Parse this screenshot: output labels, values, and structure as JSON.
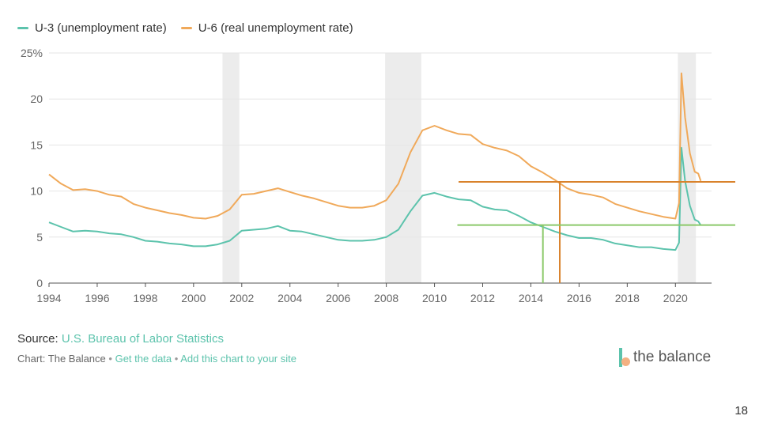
{
  "legend": [
    {
      "label": "U-3 (unemployment rate)",
      "color": "#5cc3ac"
    },
    {
      "label": "U-6 (real unemployment rate)",
      "color": "#f0a95a"
    }
  ],
  "chart_data": {
    "type": "line",
    "x_axis": {
      "min": 1994,
      "max": 2021.5,
      "ticks": [
        "1994",
        "1996",
        "1998",
        "2000",
        "2002",
        "2004",
        "2006",
        "2008",
        "2010",
        "2012",
        "2014",
        "2016",
        "2018",
        "2020"
      ]
    },
    "y_axis": {
      "min": 0,
      "max": 25,
      "ticks": [
        "0",
        "5",
        "10",
        "15",
        "20",
        "25%"
      ]
    },
    "grid": true,
    "legend_position": "top-left",
    "recession_shading": [
      [
        2001.2,
        2001.9
      ],
      [
        2007.95,
        2009.45
      ],
      [
        2020.1,
        2020.85
      ]
    ],
    "series": [
      {
        "name": "U-3 (unemployment rate)",
        "color": "#5cc3ac",
        "points": [
          [
            1994.0,
            6.6
          ],
          [
            1994.5,
            6.1
          ],
          [
            1995.0,
            5.6
          ],
          [
            1995.5,
            5.7
          ],
          [
            1996.0,
            5.6
          ],
          [
            1996.5,
            5.4
          ],
          [
            1997.0,
            5.3
          ],
          [
            1997.5,
            5.0
          ],
          [
            1998.0,
            4.6
          ],
          [
            1998.5,
            4.5
          ],
          [
            1999.0,
            4.3
          ],
          [
            1999.5,
            4.2
          ],
          [
            2000.0,
            4.0
          ],
          [
            2000.5,
            4.0
          ],
          [
            2001.0,
            4.2
          ],
          [
            2001.5,
            4.6
          ],
          [
            2002.0,
            5.7
          ],
          [
            2002.5,
            5.8
          ],
          [
            2003.0,
            5.9
          ],
          [
            2003.5,
            6.2
          ],
          [
            2004.0,
            5.7
          ],
          [
            2004.5,
            5.6
          ],
          [
            2005.0,
            5.3
          ],
          [
            2005.5,
            5.0
          ],
          [
            2006.0,
            4.7
          ],
          [
            2006.5,
            4.6
          ],
          [
            2007.0,
            4.6
          ],
          [
            2007.5,
            4.7
          ],
          [
            2008.0,
            5.0
          ],
          [
            2008.5,
            5.8
          ],
          [
            2009.0,
            7.8
          ],
          [
            2009.5,
            9.5
          ],
          [
            2010.0,
            9.8
          ],
          [
            2010.5,
            9.4
          ],
          [
            2011.0,
            9.1
          ],
          [
            2011.5,
            9.0
          ],
          [
            2012.0,
            8.3
          ],
          [
            2012.5,
            8.0
          ],
          [
            2013.0,
            7.9
          ],
          [
            2013.5,
            7.3
          ],
          [
            2014.0,
            6.6
          ],
          [
            2014.5,
            6.1
          ],
          [
            2015.0,
            5.6
          ],
          [
            2015.5,
            5.2
          ],
          [
            2016.0,
            4.9
          ],
          [
            2016.5,
            4.9
          ],
          [
            2017.0,
            4.7
          ],
          [
            2017.5,
            4.3
          ],
          [
            2018.0,
            4.1
          ],
          [
            2018.5,
            3.9
          ],
          [
            2019.0,
            3.9
          ],
          [
            2019.5,
            3.7
          ],
          [
            2020.0,
            3.6
          ],
          [
            2020.15,
            4.4
          ],
          [
            2020.25,
            14.7
          ],
          [
            2020.4,
            11.1
          ],
          [
            2020.6,
            8.4
          ],
          [
            2020.8,
            6.9
          ],
          [
            2020.95,
            6.7
          ],
          [
            2021.05,
            6.3
          ]
        ]
      },
      {
        "name": "U-6 (real unemployment rate)",
        "color": "#f0a95a",
        "points": [
          [
            1994.0,
            11.8
          ],
          [
            1994.5,
            10.8
          ],
          [
            1995.0,
            10.1
          ],
          [
            1995.5,
            10.2
          ],
          [
            1996.0,
            10.0
          ],
          [
            1996.5,
            9.6
          ],
          [
            1997.0,
            9.4
          ],
          [
            1997.5,
            8.6
          ],
          [
            1998.0,
            8.2
          ],
          [
            1998.5,
            7.9
          ],
          [
            1999.0,
            7.6
          ],
          [
            1999.5,
            7.4
          ],
          [
            2000.0,
            7.1
          ],
          [
            2000.5,
            7.0
          ],
          [
            2001.0,
            7.3
          ],
          [
            2001.5,
            8.0
          ],
          [
            2002.0,
            9.6
          ],
          [
            2002.5,
            9.7
          ],
          [
            2003.0,
            10.0
          ],
          [
            2003.5,
            10.3
          ],
          [
            2004.0,
            9.9
          ],
          [
            2004.5,
            9.5
          ],
          [
            2005.0,
            9.2
          ],
          [
            2005.5,
            8.8
          ],
          [
            2006.0,
            8.4
          ],
          [
            2006.5,
            8.2
          ],
          [
            2007.0,
            8.2
          ],
          [
            2007.5,
            8.4
          ],
          [
            2008.0,
            9.0
          ],
          [
            2008.5,
            10.8
          ],
          [
            2009.0,
            14.2
          ],
          [
            2009.5,
            16.6
          ],
          [
            2010.0,
            17.1
          ],
          [
            2010.5,
            16.6
          ],
          [
            2011.0,
            16.2
          ],
          [
            2011.5,
            16.1
          ],
          [
            2012.0,
            15.1
          ],
          [
            2012.5,
            14.7
          ],
          [
            2013.0,
            14.4
          ],
          [
            2013.5,
            13.8
          ],
          [
            2014.0,
            12.7
          ],
          [
            2014.5,
            12.0
          ],
          [
            2015.0,
            11.2
          ],
          [
            2015.5,
            10.3
          ],
          [
            2016.0,
            9.8
          ],
          [
            2016.5,
            9.6
          ],
          [
            2017.0,
            9.3
          ],
          [
            2017.5,
            8.6
          ],
          [
            2018.0,
            8.2
          ],
          [
            2018.5,
            7.8
          ],
          [
            2019.0,
            7.5
          ],
          [
            2019.5,
            7.2
          ],
          [
            2020.0,
            7.0
          ],
          [
            2020.15,
            8.7
          ],
          [
            2020.25,
            22.8
          ],
          [
            2020.4,
            18.0
          ],
          [
            2020.6,
            14.1
          ],
          [
            2020.8,
            12.1
          ],
          [
            2020.95,
            11.9
          ],
          [
            2021.05,
            11.1
          ]
        ]
      }
    ],
    "annotations": [
      {
        "type": "horizontal",
        "y": 11.0,
        "x_start": 2011.0,
        "color": "#d9822b"
      },
      {
        "type": "vertical",
        "x": 2015.2,
        "y_top": 11.0,
        "color": "#d9822b"
      },
      {
        "type": "horizontal",
        "y": 6.3,
        "x_start": 2010.95,
        "color": "#8bc96a"
      },
      {
        "type": "vertical",
        "x": 2014.5,
        "y_top": 6.3,
        "color": "#8bc96a"
      }
    ]
  },
  "source": {
    "label": "Source:",
    "link_text": "U.S. Bureau of Labor Statistics"
  },
  "credit": {
    "text": "Chart: The Balance",
    "sep": "•",
    "get_data": "Get the data",
    "add_chart": "Add this chart to your site"
  },
  "brand": {
    "name": "the balance"
  },
  "page_number": "18"
}
